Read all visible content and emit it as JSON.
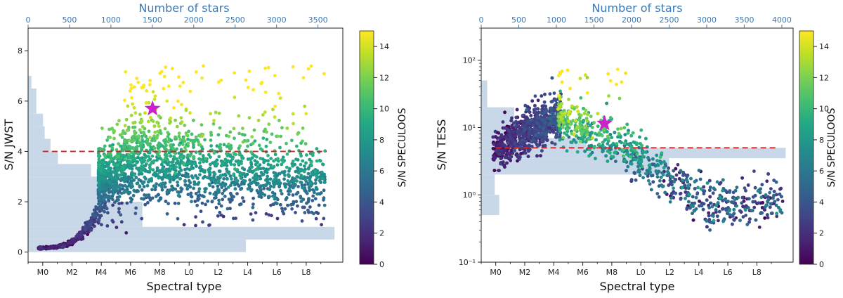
{
  "chart_data": [
    {
      "type": "scatter",
      "panel": "left",
      "xlabel": "Spectral type",
      "ylabel": "S/N JWST",
      "top_xlabel": "Number of stars",
      "y_scale": "linear",
      "xlim": [
        -1,
        20.5
      ],
      "ylim": [
        -0.4,
        8.9
      ],
      "x_ticks": [
        0,
        2,
        4,
        6,
        8,
        10,
        12,
        14,
        16,
        18
      ],
      "x_tick_labels": [
        "M0",
        "M2",
        "M4",
        "M6",
        "M8",
        "L0",
        "L2",
        "L4",
        "L6",
        "L8"
      ],
      "y_ticks": [
        0,
        2,
        4,
        6,
        8
      ],
      "y_tick_labels": [
        "0",
        "2",
        "4",
        "6",
        "8"
      ],
      "top_xlim": [
        0,
        3800
      ],
      "top_ticks": [
        0,
        500,
        1000,
        1500,
        2000,
        2500,
        3000,
        3500
      ],
      "top_tick_labels": [
        "0",
        "500",
        "1000",
        "1500",
        "2000",
        "2500",
        "3000",
        "3500"
      ],
      "threshold": {
        "value": 4,
        "color": "#dd2222"
      },
      "histogram": {
        "color": "#c9d8e8",
        "bins": [
          {
            "y0": 6.5,
            "y1": 7.0,
            "count": 40
          },
          {
            "y0": 5.5,
            "y1": 6.5,
            "count": 100
          },
          {
            "y0": 5.0,
            "y1": 5.5,
            "count": 180
          },
          {
            "y0": 4.5,
            "y1": 5.0,
            "count": 200
          },
          {
            "y0": 4.0,
            "y1": 4.5,
            "count": 270
          },
          {
            "y0": 3.5,
            "y1": 4.0,
            "count": 360
          },
          {
            "y0": 3.0,
            "y1": 3.5,
            "count": 760
          },
          {
            "y0": 2.0,
            "y1": 3.0,
            "count": 1000
          },
          {
            "y0": 1.0,
            "y1": 2.0,
            "count": 1380
          },
          {
            "y0": 0.5,
            "y1": 1.0,
            "count": 2260
          },
          {
            "y0": 0.0,
            "y1": 0.5,
            "count": 2630
          },
          {
            "y0": 0.5,
            "y1": 1.0,
            "count": 3700,
            "x_from": 2260
          }
        ]
      },
      "star": {
        "x": 7.5,
        "y": 5.7,
        "color": "#cc22cc"
      },
      "colorbar": {
        "label": "S/N SPECULOOS",
        "range": [
          0,
          15
        ],
        "ticks": [
          0,
          2,
          4,
          6,
          8,
          10,
          12,
          14
        ],
        "tick_labels": [
          "0",
          "2",
          "4",
          "6",
          "8",
          "10",
          "12",
          "14"
        ]
      }
    },
    {
      "type": "scatter",
      "panel": "right",
      "xlabel": "Spectral type",
      "ylabel": "S/N TESS",
      "top_xlabel": "Number of stars",
      "y_scale": "log",
      "xlim": [
        -1,
        20.5
      ],
      "ylim": [
        0.1,
        300
      ],
      "x_ticks": [
        0,
        2,
        4,
        6,
        8,
        10,
        12,
        14,
        16,
        18
      ],
      "x_tick_labels": [
        "M0",
        "M2",
        "M4",
        "M6",
        "M8",
        "L0",
        "L2",
        "L4",
        "L6",
        "L8"
      ],
      "y_ticks": [
        0.1,
        1,
        10,
        100
      ],
      "y_tick_labels": [
        "10⁻¹",
        "10⁰",
        "10¹",
        "10²"
      ],
      "top_xlim": [
        0,
        4150
      ],
      "top_ticks": [
        0,
        500,
        1000,
        1500,
        2000,
        2500,
        3000,
        3500,
        4000
      ],
      "top_tick_labels": [
        "0",
        "500",
        "1000",
        "1500",
        "2000",
        "2500",
        "3000",
        "3500",
        "4000"
      ],
      "threshold": {
        "value": 5,
        "color": "#dd2222"
      },
      "histogram": {
        "color": "#c9d8e8",
        "bins": [
          {
            "y0": 20,
            "y1": 50,
            "count": 80
          },
          {
            "y0": 7,
            "y1": 20,
            "count": 440
          },
          {
            "y0": 5,
            "y1": 7,
            "count": 1400
          },
          {
            "y0": 3.5,
            "y1": 5,
            "count": 4050
          },
          {
            "y0": 2,
            "y1": 3.5,
            "count": 2500
          },
          {
            "y0": 1,
            "y1": 2,
            "count": 180
          },
          {
            "y0": 0.5,
            "y1": 1,
            "count": 240
          }
        ]
      },
      "star": {
        "x": 7.5,
        "y": 11.5,
        "color": "#cc22cc"
      },
      "colorbar": {
        "label": "S/N SPECULOOS",
        "range": [
          0,
          15
        ],
        "ticks": [
          0,
          2,
          4,
          6,
          8,
          10,
          12,
          14
        ],
        "tick_labels": [
          "0",
          "2",
          "4",
          "6",
          "8",
          "10",
          "12",
          "14"
        ]
      }
    }
  ]
}
